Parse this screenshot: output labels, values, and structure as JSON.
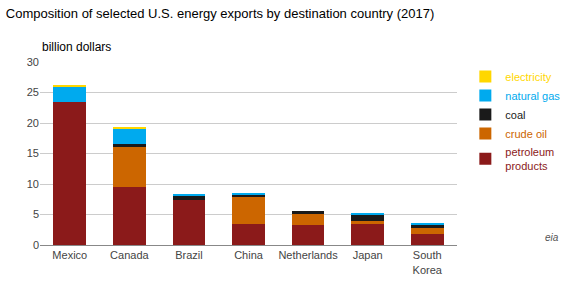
{
  "chart_data": {
    "type": "bar",
    "stacked": true,
    "title": "Composition of selected U.S. energy exports by destination country (2017)",
    "ylabel": "billion dollars",
    "categories": [
      "Mexico",
      "Canada",
      "Brazil",
      "China",
      "Netherlands",
      "Japan",
      "South\nKorea"
    ],
    "series": [
      {
        "name": "petroleum\nproducts",
        "color": "#8B1A1A",
        "values": [
          23.5,
          9.5,
          7.3,
          3.4,
          3.3,
          3.5,
          1.8
        ]
      },
      {
        "name": "crude oil",
        "color": "#CC6600",
        "values": [
          0.0,
          6.5,
          0.0,
          4.5,
          1.8,
          0.5,
          1.0
        ]
      },
      {
        "name": "coal",
        "color": "#1A1A1A",
        "values": [
          0.0,
          0.5,
          0.8,
          0.3,
          0.5,
          1.0,
          0.55
        ]
      },
      {
        "name": "natural gas",
        "color": "#00AAEE",
        "values": [
          2.5,
          2.5,
          0.3,
          0.3,
          0.0,
          0.3,
          0.3
        ]
      },
      {
        "name": "electricity",
        "color": "#FFD700",
        "values": [
          0.2,
          0.4,
          0.0,
          0.0,
          0.0,
          0.0,
          0.0
        ]
      }
    ],
    "ylim": [
      0,
      30
    ],
    "yticks": [
      0,
      5,
      10,
      15,
      20,
      25,
      30
    ],
    "grid": true,
    "legend": "upper right",
    "annotations": [
      {
        "text": "eia"
      }
    ]
  }
}
